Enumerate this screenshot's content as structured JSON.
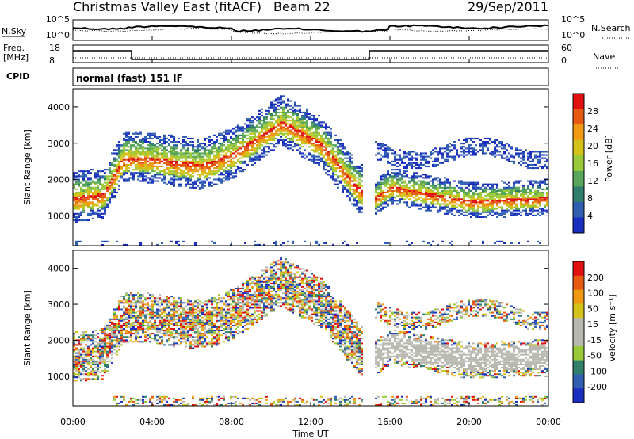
{
  "header": {
    "station": "Christmas Valley East (fitACF)",
    "beam": "Beam 22",
    "date": "29/Sep/2011"
  },
  "noise_panel": {
    "left_label": "N.Sky",
    "left_ticks": [
      "10^5",
      "10^0"
    ],
    "right_label": "N.Search",
    "right_ticks": [
      "10^5",
      "10^0"
    ]
  },
  "freq_panel": {
    "left_label_1": "Freq.",
    "left_label_2": "[MHz]",
    "left_ticks": [
      "18",
      "8"
    ],
    "right_label": "Nave",
    "right_ticks": [
      "60",
      "0"
    ]
  },
  "cpid": {
    "label": "CPID",
    "value": "normal (fast) 151 IF"
  },
  "colors": {
    "white": "#ffffff",
    "blue_dark": "#1a2fbf",
    "blue_mid": "#2f5fb0",
    "green_dark": "#2f7f6b",
    "green": "#59a65a",
    "green_light": "#9ac93a",
    "yellow": "#d4c21a",
    "orange": "#ef9a12",
    "orange_red": "#e65a12",
    "red": "#e01010",
    "gray": "#b8b8b0"
  },
  "chart_data": [
    {
      "type": "heatmap",
      "title": "",
      "xlabel": "Time UT",
      "ylabel": "Slant Range [km]",
      "x_ticks": [
        "00:00",
        "04:00",
        "08:00",
        "12:00",
        "16:00",
        "20:00",
        "00:00"
      ],
      "y_ticks": [
        "1000",
        "2000",
        "3000",
        "4000"
      ],
      "xlim_hours": [
        0,
        24
      ],
      "ylim_km": [
        180,
        4500
      ],
      "colorbar": {
        "label": "Power [dB]",
        "tick_labels": [
          "4",
          "8",
          "12",
          "16",
          "20",
          "24",
          "28"
        ],
        "range": [
          0,
          32
        ]
      },
      "main_band_km": [
        {
          "hour": 0.0,
          "km": 1500
        },
        {
          "hour": 1.5,
          "km": 1600
        },
        {
          "hour": 2.5,
          "km": 2600
        },
        {
          "hour": 3.5,
          "km": 2600
        },
        {
          "hour": 5.0,
          "km": 2500
        },
        {
          "hour": 6.5,
          "km": 2400
        },
        {
          "hour": 8.0,
          "km": 2700
        },
        {
          "hour": 10.5,
          "km": 3600
        },
        {
          "hour": 12.5,
          "km": 3000
        },
        {
          "hour": 14.0,
          "km": 2000
        },
        {
          "hour": 15.0,
          "km": 1400
        },
        {
          "hour": 16.0,
          "km": 1800
        },
        {
          "hour": 20.0,
          "km": 1400
        },
        {
          "hour": 24.0,
          "km": 1500
        }
      ]
    },
    {
      "type": "heatmap",
      "title": "",
      "xlabel": "Time UT",
      "ylabel": "Slant Range [km]",
      "x_ticks": [
        "00:00",
        "04:00",
        "08:00",
        "12:00",
        "16:00",
        "20:00",
        "00:00"
      ],
      "y_ticks": [
        "1000",
        "2000",
        "3000",
        "4000"
      ],
      "xlim_hours": [
        0,
        24
      ],
      "ylim_km": [
        180,
        4500
      ],
      "colorbar": {
        "label": "Velocity [m s⁻¹]",
        "tick_labels": [
          "200",
          "100",
          "50",
          "15",
          "-15",
          "-50",
          "-100",
          "-200"
        ]
      }
    }
  ]
}
